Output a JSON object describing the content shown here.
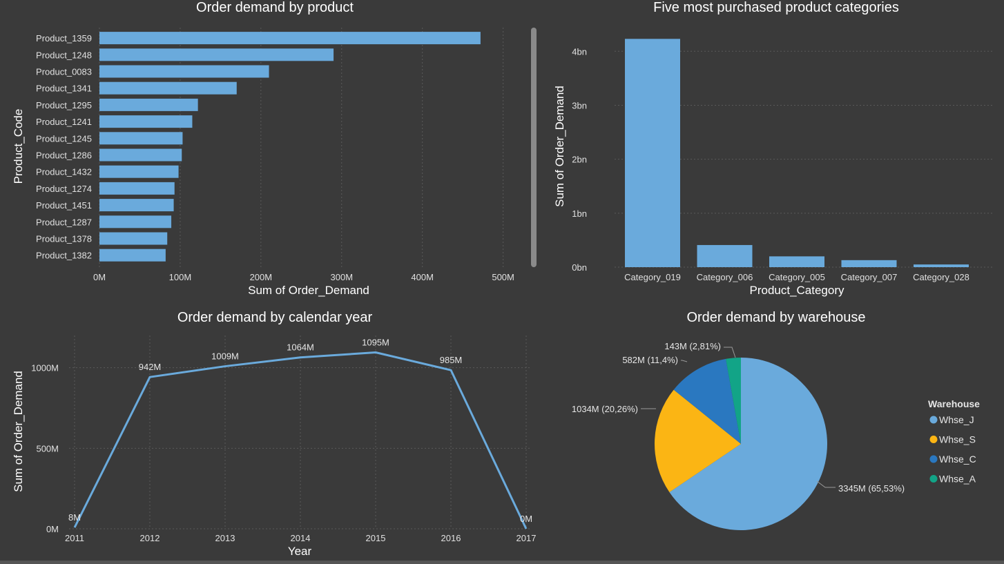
{
  "colors": {
    "bar": "#6aaadc",
    "line": "#6aaadc",
    "background": "#3a3a3a"
  },
  "chart_data": [
    {
      "type": "bar",
      "orientation": "horizontal",
      "title": "Order demand by product",
      "xlabel": "Sum of Order_Demand",
      "ylabel": "Product_Code",
      "categories": [
        "Product_1359",
        "Product_1248",
        "Product_0083",
        "Product_1341",
        "Product_1295",
        "Product_1241",
        "Product_1245",
        "Product_1286",
        "Product_1432",
        "Product_1274",
        "Product_1451",
        "Product_1287",
        "Product_1378",
        "Product_1382"
      ],
      "values": [
        472,
        290,
        210,
        170,
        122,
        115,
        103,
        102,
        98,
        93,
        92,
        89,
        84,
        82
      ],
      "xticks": [
        "0M",
        "100M",
        "200M",
        "300M",
        "400M",
        "500M"
      ],
      "xlim": [
        0,
        520
      ],
      "scrollbar": true
    },
    {
      "type": "bar",
      "title": "Five most purchased product categories",
      "xlabel": "Product_Category",
      "ylabel": "Sum of Order_Demand",
      "categories": [
        "Category_019",
        "Category_006",
        "Category_005",
        "Category_007",
        "Category_028"
      ],
      "values": [
        4.23,
        0.41,
        0.2,
        0.13,
        0.05
      ],
      "yticks": [
        "0bn",
        "1bn",
        "2bn",
        "3bn",
        "4bn"
      ],
      "ylim": [
        0,
        4.4
      ]
    },
    {
      "type": "line",
      "title": "Order demand by calendar year",
      "xlabel": "Year",
      "ylabel": "Sum of Order_Demand",
      "x": [
        "2011",
        "2012",
        "2013",
        "2014",
        "2015",
        "2016",
        "2017"
      ],
      "values": [
        8,
        942,
        1009,
        1064,
        1095,
        985,
        0
      ],
      "data_labels": [
        "8M",
        "942M",
        "1009M",
        "1064M",
        "1095M",
        "985M",
        "0M"
      ],
      "yticks": [
        "0M",
        "500M",
        "1000M"
      ],
      "ylim": [
        0,
        1200
      ]
    },
    {
      "type": "pie",
      "title": "Order demand by warehouse",
      "legend_title": "Warehouse",
      "series": [
        {
          "name": "Whse_J",
          "value": 3345,
          "label": "3345M (65,53%)",
          "color": "#6aaadc"
        },
        {
          "name": "Whse_S",
          "value": 1034,
          "label": "1034M (20,26%)",
          "color": "#fbb514"
        },
        {
          "name": "Whse_C",
          "value": 582,
          "label": "582M (11,4%)",
          "color": "#2a78c0"
        },
        {
          "name": "Whse_A",
          "value": 143,
          "label": "143M (2,81%)",
          "color": "#12a487"
        }
      ],
      "legend_position": "right"
    }
  ]
}
